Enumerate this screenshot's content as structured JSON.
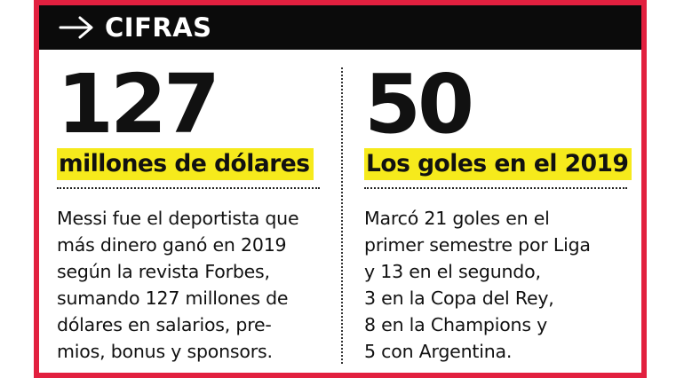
{
  "header": {
    "title": "CIFRAS",
    "arrow_icon": "arrow-right-icon"
  },
  "left": {
    "number": "127",
    "highlight": "millones de dólares",
    "text": "Messi fue el deportista que\nmás dinero ganó en 2019\nsegún la revista Forbes,\nsumando 127 millones de\ndólares en salarios, pre-\nmios, bonus y sponsors."
  },
  "right": {
    "number": "50",
    "highlight": "Los goles en el 2019",
    "text": "Marcó 21 goles en el\nprimer semestre por Liga\ny 13 en el segundo,\n3 en la Copa del Rey,\n8 en la Champions y\n5 con Argentina."
  },
  "colors": {
    "frame": "#e2203f",
    "header_bg": "#0b0b0b",
    "highlight": "#f6ea1c"
  }
}
